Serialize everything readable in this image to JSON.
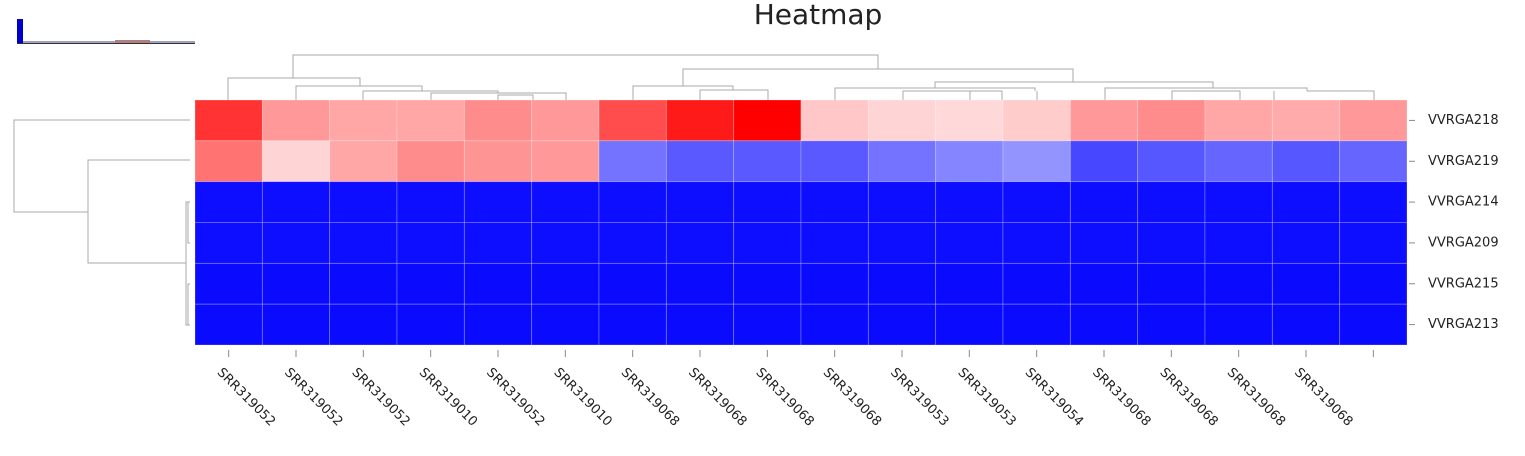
{
  "chart_data": {
    "type": "heatmap",
    "title": "Heatmap",
    "categories": [
      "SRR319052",
      "SRR319052",
      "SRR319052",
      "SRR319010",
      "SRR319052",
      "SRR319010",
      "SRR319068",
      "SRR319068",
      "SRR319068",
      "SRR319068",
      "SRR319053",
      "SRR319053",
      "SRR319054",
      "SRR319068",
      "SRR319068",
      "SRR319068",
      "SRR319068",
      null
    ],
    "rows": [
      "VVRGA218",
      "VVRGA219",
      "VVRGA214",
      "VVRGA209",
      "VVRGA215",
      "VVRGA213"
    ],
    "values": [
      [
        0.8,
        0.4,
        0.35,
        0.35,
        0.45,
        0.4,
        0.7,
        0.9,
        1.0,
        0.22,
        0.17,
        0.15,
        0.2,
        0.4,
        0.45,
        0.35,
        0.33,
        0.4
      ],
      [
        0.55,
        0.17,
        0.35,
        0.45,
        0.42,
        0.4,
        -0.55,
        -0.65,
        -0.65,
        -0.65,
        -0.55,
        -0.48,
        -0.42,
        -0.72,
        -0.66,
        -0.6,
        -0.66,
        -0.6
      ],
      [
        -0.95,
        -0.95,
        -0.95,
        -0.95,
        -0.95,
        -0.95,
        -0.95,
        -0.95,
        -0.95,
        -0.95,
        -0.95,
        -0.95,
        -0.95,
        -0.95,
        -0.95,
        -0.95,
        -0.95,
        -0.95
      ],
      [
        -0.95,
        -0.95,
        -0.95,
        -0.95,
        -0.95,
        -0.95,
        -0.95,
        -0.95,
        -0.95,
        -0.95,
        -0.95,
        -0.95,
        -0.95,
        -0.95,
        -0.95,
        -0.95,
        -0.95,
        -0.95
      ],
      [
        -0.96,
        -0.96,
        -0.96,
        -0.96,
        -0.96,
        -0.96,
        -0.96,
        -0.96,
        -0.96,
        -0.96,
        -0.96,
        -0.96,
        -0.96,
        -0.96,
        -0.96,
        -0.96,
        -0.96,
        -0.96
      ],
      [
        -0.96,
        -0.96,
        -0.96,
        -0.96,
        -0.96,
        -0.96,
        -0.96,
        -0.96,
        -0.96,
        -0.96,
        -0.96,
        -0.96,
        -0.96,
        -0.96,
        -0.96,
        -0.96,
        -0.96,
        -0.96
      ]
    ],
    "zlim": [
      -1,
      1
    ],
    "colors": [
      "#0000ff",
      "#ffffff",
      "#ff0000"
    ]
  }
}
